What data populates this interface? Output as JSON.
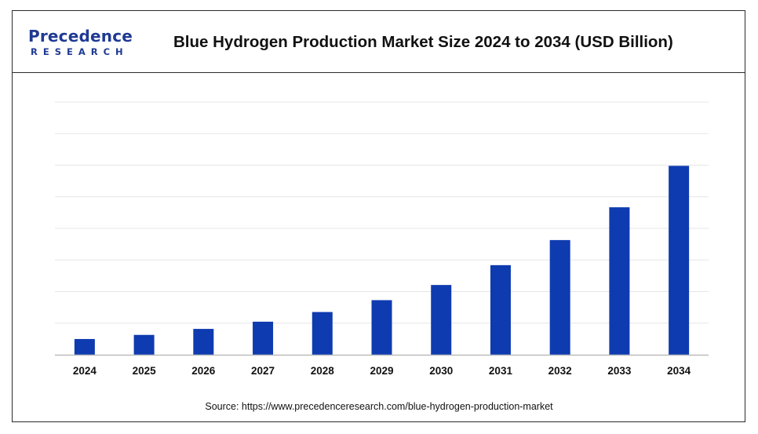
{
  "logo": {
    "main": "Precedence",
    "sub": "RESEARCH"
  },
  "title": "Blue Hydrogen Production Market Size 2024 to 2034 (USD Billion)",
  "source": "Source: https://www.precedenceresearch.com/blue-hydrogen-production-market",
  "colors": {
    "bar": "#0f3bb0",
    "grid": "#e6e6e6",
    "axis": "#bdbdbd",
    "frame": "#2b2b2b",
    "brand": "#1f3a93"
  },
  "chart_data": {
    "type": "bar",
    "title": "Blue Hydrogen Production Market Size 2024 to 2034 (USD Billion)",
    "categories": [
      "2024",
      "2025",
      "2026",
      "2027",
      "2028",
      "2029",
      "2030",
      "2031",
      "2032",
      "2033",
      "2034"
    ],
    "series": [
      {
        "values": [
          24.9,
          31.4,
          40.9,
          52.3,
          67.6,
          86.4,
          110.4,
          141.8,
          181.5,
          233.4,
          299.0
        ]
      }
    ],
    "ylim": [
      0,
      400
    ],
    "grid": true,
    "legend": "none"
  }
}
